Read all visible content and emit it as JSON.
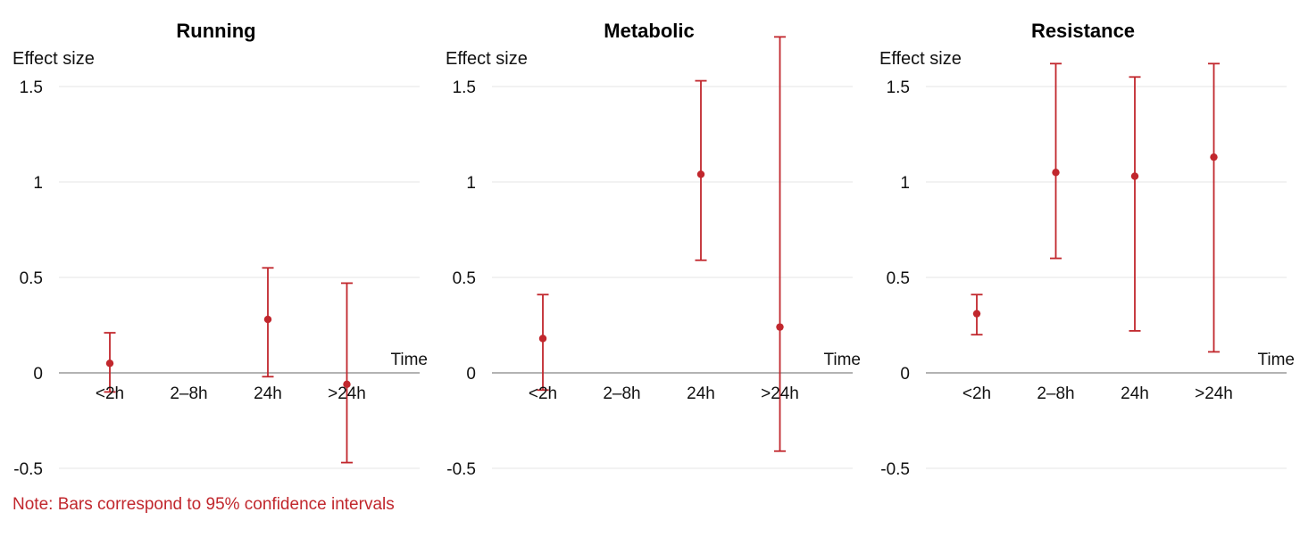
{
  "note": "Note: Bars correspond to 95% confidence intervals",
  "colors": {
    "accent": "#c1272d",
    "note_text": "#c1272d",
    "zero_axis": "#9a9a9a",
    "gridline": "#e4e4e4",
    "label_text": "#111111"
  },
  "chart_data": [
    {
      "type": "scatter",
      "title": "Running",
      "ylabel": "Effect size",
      "xlabel": "Time",
      "categories": [
        "<2h",
        "2–8h",
        "24h",
        ">24h"
      ],
      "yticks": [
        -0.5,
        0,
        0.5,
        1,
        1.5
      ],
      "ylim": [
        -0.5,
        1.8
      ],
      "grid": true,
      "legend": "none",
      "error_bars": "95% confidence intervals",
      "series": [
        {
          "name": "Effect size",
          "points": [
            {
              "x": "<2h",
              "est": 0.05,
              "ci_low": -0.1,
              "ci_high": 0.21
            },
            {
              "x": "24h",
              "est": 0.28,
              "ci_low": -0.02,
              "ci_high": 0.55
            },
            {
              "x": ">24h",
              "est": -0.06,
              "ci_low": -0.47,
              "ci_high": 0.47
            }
          ]
        }
      ]
    },
    {
      "type": "scatter",
      "title": "Metabolic",
      "ylabel": "Effect size",
      "xlabel": "Time",
      "categories": [
        "<2h",
        "2–8h",
        "24h",
        ">24h"
      ],
      "yticks": [
        -0.5,
        0,
        0.5,
        1,
        1.5
      ],
      "ylim": [
        -0.5,
        1.8
      ],
      "grid": true,
      "legend": "none",
      "error_bars": "95% confidence intervals",
      "series": [
        {
          "name": "Effect size",
          "points": [
            {
              "x": "<2h",
              "est": 0.18,
              "ci_low": -0.09,
              "ci_high": 0.41
            },
            {
              "x": "24h",
              "est": 1.04,
              "ci_low": 0.59,
              "ci_high": 1.53
            },
            {
              "x": ">24h",
              "est": 0.24,
              "ci_low": -0.41,
              "ci_high": 1.76
            }
          ]
        }
      ]
    },
    {
      "type": "scatter",
      "title": "Resistance",
      "ylabel": "Effect size",
      "xlabel": "Time",
      "categories": [
        "<2h",
        "2–8h",
        "24h",
        ">24h"
      ],
      "yticks": [
        -0.5,
        0,
        0.5,
        1,
        1.5
      ],
      "ylim": [
        -0.5,
        1.8
      ],
      "grid": true,
      "legend": "none",
      "error_bars": "95% confidence intervals",
      "series": [
        {
          "name": "Effect size",
          "points": [
            {
              "x": "<2h",
              "est": 0.31,
              "ci_low": 0.2,
              "ci_high": 0.41
            },
            {
              "x": "2–8h",
              "est": 1.05,
              "ci_low": 0.6,
              "ci_high": 1.62
            },
            {
              "x": "24h",
              "est": 1.03,
              "ci_low": 0.22,
              "ci_high": 1.55
            },
            {
              "x": ">24h",
              "est": 1.13,
              "ci_low": 0.11,
              "ci_high": 1.62
            }
          ]
        }
      ]
    }
  ]
}
